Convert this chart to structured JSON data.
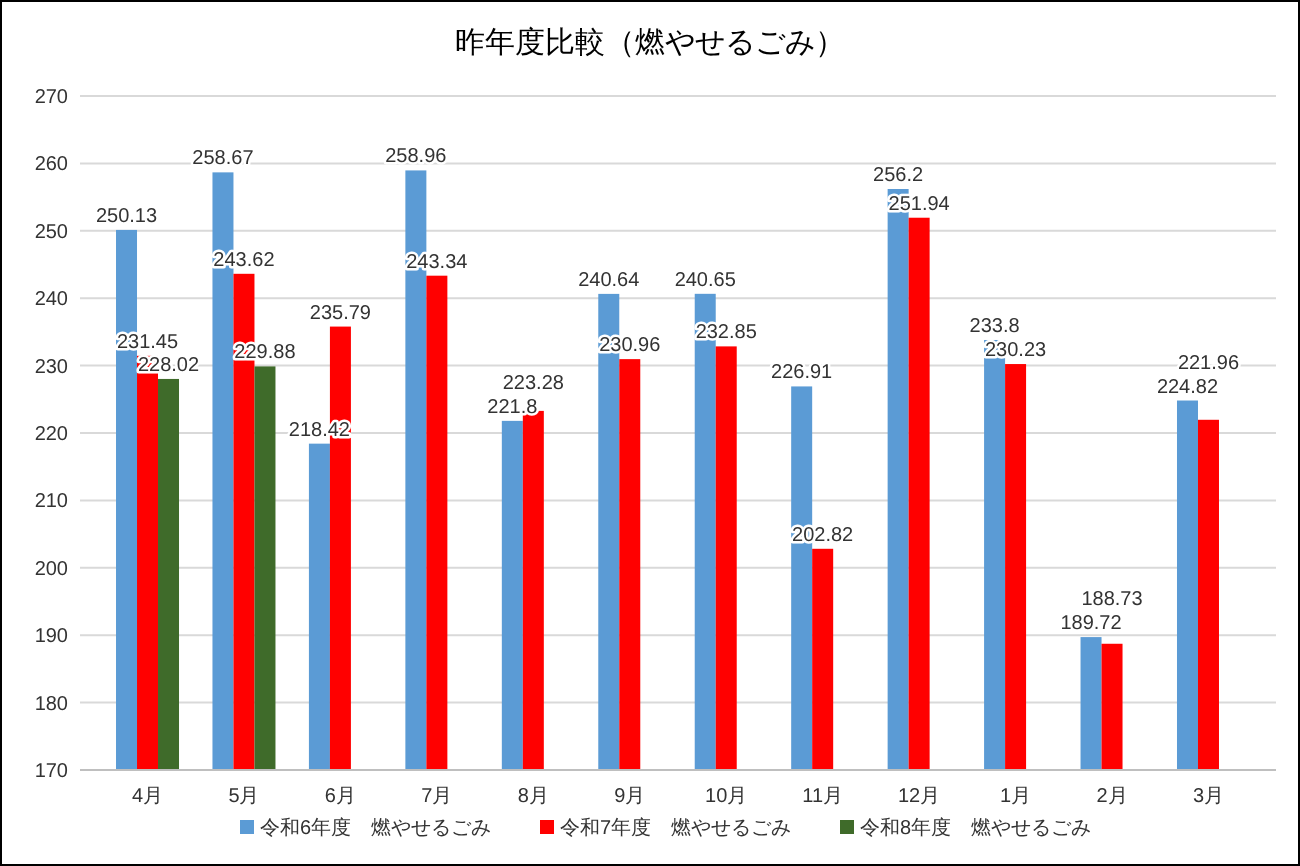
{
  "chart_data": {
    "type": "bar",
    "title": "昨年度比較（燃やせるごみ）",
    "categories": [
      "4月",
      "5月",
      "6月",
      "7月",
      "8月",
      "9月",
      "10月",
      "11月",
      "12月",
      "1月",
      "2月",
      "3月"
    ],
    "series": [
      {
        "name": "令和6年度　燃やせるごみ",
        "color": "#5b9bd5",
        "values": [
          250.13,
          258.67,
          218.42,
          258.96,
          221.8,
          240.64,
          240.65,
          226.91,
          256.2,
          233.8,
          189.72,
          224.82
        ]
      },
      {
        "name": "令和7年度　燃やせるごみ",
        "color": "#ff0000",
        "values": [
          231.45,
          243.62,
          235.79,
          243.34,
          223.28,
          230.96,
          232.85,
          202.82,
          251.94,
          230.23,
          188.73,
          221.96
        ]
      },
      {
        "name": "令和8年度　燃やせるごみ",
        "color": "#3f6b2a",
        "values": [
          228.02,
          229.88,
          null,
          null,
          null,
          null,
          null,
          null,
          null,
          null,
          null,
          null
        ]
      }
    ],
    "ylim": [
      170,
      270
    ],
    "yticks": [
      170,
      180,
      190,
      200,
      210,
      220,
      230,
      240,
      250,
      260,
      270
    ],
    "grid": "y",
    "legend": "bottom",
    "data_labels": true
  }
}
